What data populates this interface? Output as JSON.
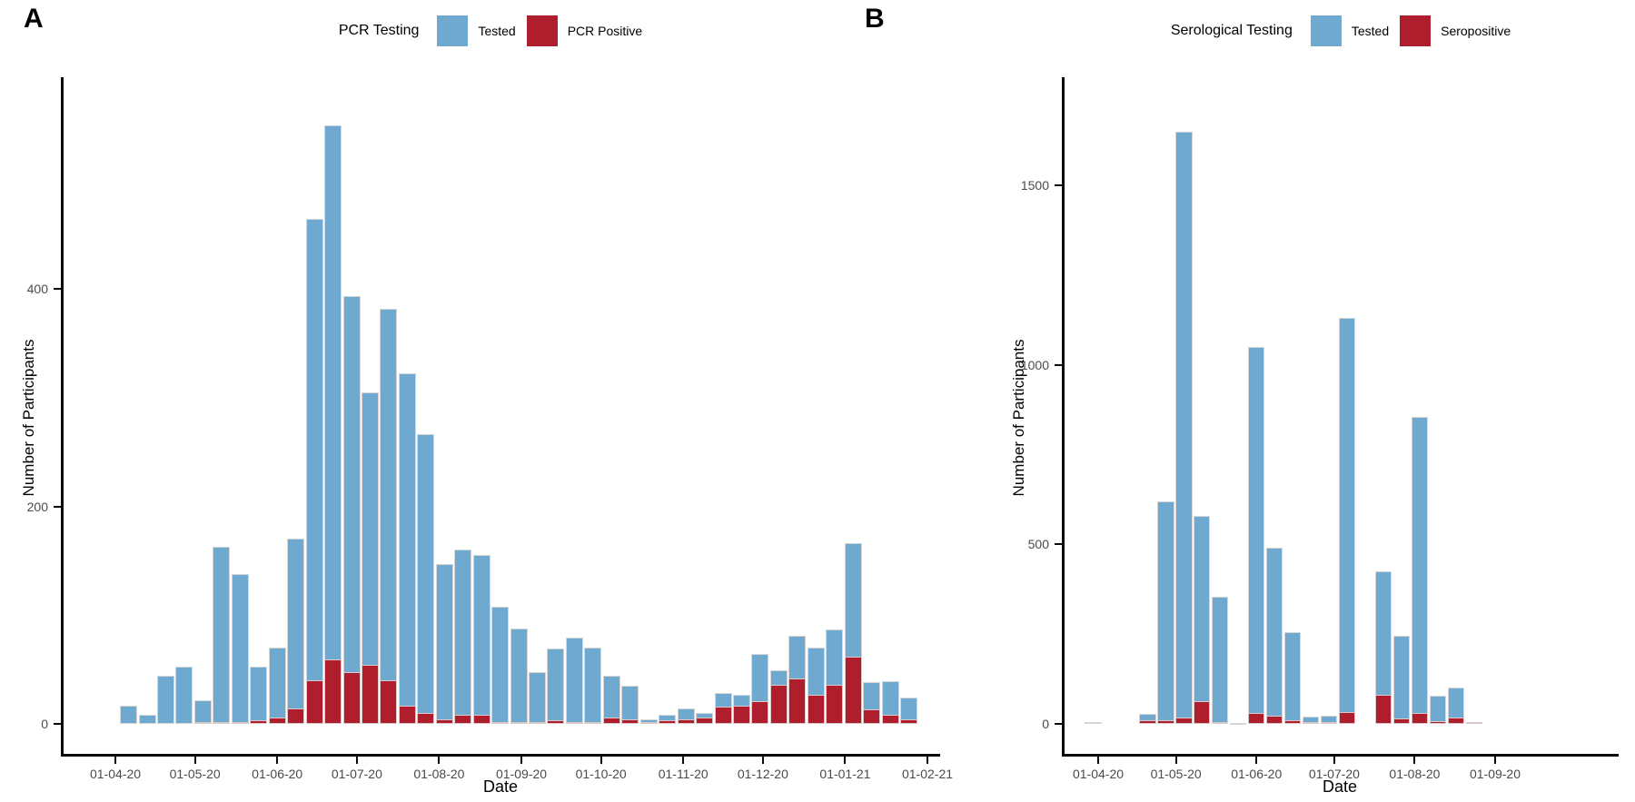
{
  "figure": {
    "background": "#ffffff",
    "tested_color": "#6fa9d0",
    "positive_color": "#ae1e2c"
  },
  "panels": [
    {
      "panel_label": "A",
      "legend": {
        "title": "PCR Testing",
        "items": [
          {
            "label": "Tested",
            "color": "#6fa9d0"
          },
          {
            "label": "PCR Positive",
            "color": "#ae1e2c"
          }
        ]
      },
      "y_axis": {
        "title": "Number of Participants",
        "ticks": [
          "0",
          "200",
          "400"
        ]
      },
      "x_axis": {
        "title": "Date",
        "ticks": [
          "01-04-20",
          "01-05-20",
          "01-06-20",
          "01-07-20",
          "01-08-20",
          "01-09-20",
          "01-10-20",
          "01-11-20",
          "01-12-20",
          "01-01-21",
          "01-02-21"
        ]
      }
    },
    {
      "panel_label": "B",
      "legend": {
        "title": "Serological Testing",
        "items": [
          {
            "label": "Tested",
            "color": "#6fa9d0"
          },
          {
            "label": "Seropositive",
            "color": "#ae1e2c"
          }
        ]
      },
      "y_axis": {
        "title": "Number of Participants",
        "ticks": [
          "0",
          "500",
          "1000",
          "1500"
        ]
      },
      "x_axis": {
        "title": "Date",
        "ticks": [
          "01-04-20",
          "01-05-20",
          "01-06-20",
          "01-07-20",
          "01-08-20",
          "01-09-20"
        ]
      }
    }
  ],
  "chart_data": [
    {
      "type": "bar",
      "subtype": "weekly stacked histogram, positives shown as bottom segment of tested bar",
      "title": "PCR Testing",
      "xlabel": "Date",
      "ylabel": "Number of Participants",
      "ylim": [
        0,
        560
      ],
      "y_ticks": [
        0,
        200,
        400
      ],
      "x_tick_labels": [
        "01-04-20",
        "01-05-20",
        "01-06-20",
        "01-07-20",
        "01-08-20",
        "01-09-20",
        "01-10-20",
        "01-11-20",
        "01-12-20",
        "01-01-21",
        "01-02-21"
      ],
      "week_start_dates": [
        "06-04-20",
        "13-04-20",
        "20-04-20",
        "27-04-20",
        "04-05-20",
        "11-05-20",
        "18-05-20",
        "25-05-20",
        "01-06-20",
        "08-06-20",
        "15-06-20",
        "22-06-20",
        "29-06-20",
        "06-07-20",
        "13-07-20",
        "20-07-20",
        "27-07-20",
        "03-08-20",
        "10-08-20",
        "17-08-20",
        "24-08-20",
        "31-08-20",
        "07-09-20",
        "14-09-20",
        "21-09-20",
        "28-09-20",
        "05-10-20",
        "12-10-20",
        "19-10-20",
        "26-10-20",
        "02-11-20",
        "09-11-20",
        "16-11-20",
        "23-11-20",
        "30-11-20",
        "07-12-20",
        "14-12-20",
        "21-12-20",
        "28-12-20",
        "04-01-21",
        "11-01-21",
        "18-01-21",
        "25-01-21"
      ],
      "series": [
        {
          "name": "Tested",
          "color": "#6fa9d0",
          "values": [
            17,
            8,
            44,
            53,
            22,
            163,
            138,
            53,
            70,
            170,
            464,
            550,
            393,
            305,
            382,
            322,
            266,
            147,
            160,
            155,
            108,
            88,
            48,
            69,
            79,
            70,
            44,
            35,
            4,
            8,
            14,
            10,
            28,
            27,
            64,
            49,
            81,
            70,
            87,
            166,
            38,
            39,
            24
          ]
        },
        {
          "name": "PCR Positive",
          "color": "#ae1e2c",
          "values": [
            0,
            0,
            0,
            0,
            2,
            1,
            2,
            3,
            6,
            14,
            40,
            59,
            48,
            54,
            40,
            17,
            10,
            4,
            8,
            8,
            2,
            2,
            1,
            3,
            2,
            2,
            6,
            4,
            2,
            3,
            4,
            6,
            16,
            17,
            21,
            36,
            42,
            27,
            36,
            62,
            13,
            8,
            4
          ]
        }
      ],
      "legend_position": "top",
      "grid": false
    },
    {
      "type": "bar",
      "subtype": "weekly stacked histogram, positives shown as bottom segment of tested bar",
      "title": "Serological Testing",
      "xlabel": "Date",
      "ylabel": "Number of Participants",
      "ylim": [
        0,
        1700
      ],
      "y_ticks": [
        0,
        500,
        1000,
        1500
      ],
      "x_tick_labels": [
        "01-04-20",
        "01-05-20",
        "01-06-20",
        "01-07-20",
        "01-08-20",
        "01-09-20"
      ],
      "week_start_dates": [
        "30-03-20",
        "20-04-20",
        "27-04-20",
        "04-05-20",
        "11-05-20",
        "18-05-20",
        "25-05-20",
        "01-06-20",
        "08-06-20",
        "15-06-20",
        "22-06-20",
        "29-06-20",
        "06-07-20",
        "20-07-20",
        "27-07-20",
        "03-08-20",
        "10-08-20",
        "17-08-20",
        "24-08-20"
      ],
      "series": [
        {
          "name": "Tested",
          "color": "#6fa9d0",
          "values": [
            4,
            28,
            620,
            1650,
            580,
            355,
            3,
            1050,
            490,
            255,
            20,
            23,
            1130,
            425,
            245,
            855,
            78,
            100,
            4
          ]
        },
        {
          "name": "Seropositive",
          "color": "#ae1e2c",
          "values": [
            0,
            9,
            10,
            18,
            62,
            3,
            0,
            30,
            24,
            11,
            3,
            4,
            33,
            80,
            16,
            30,
            8,
            17,
            2
          ]
        }
      ],
      "legend_position": "top",
      "grid": false
    }
  ]
}
